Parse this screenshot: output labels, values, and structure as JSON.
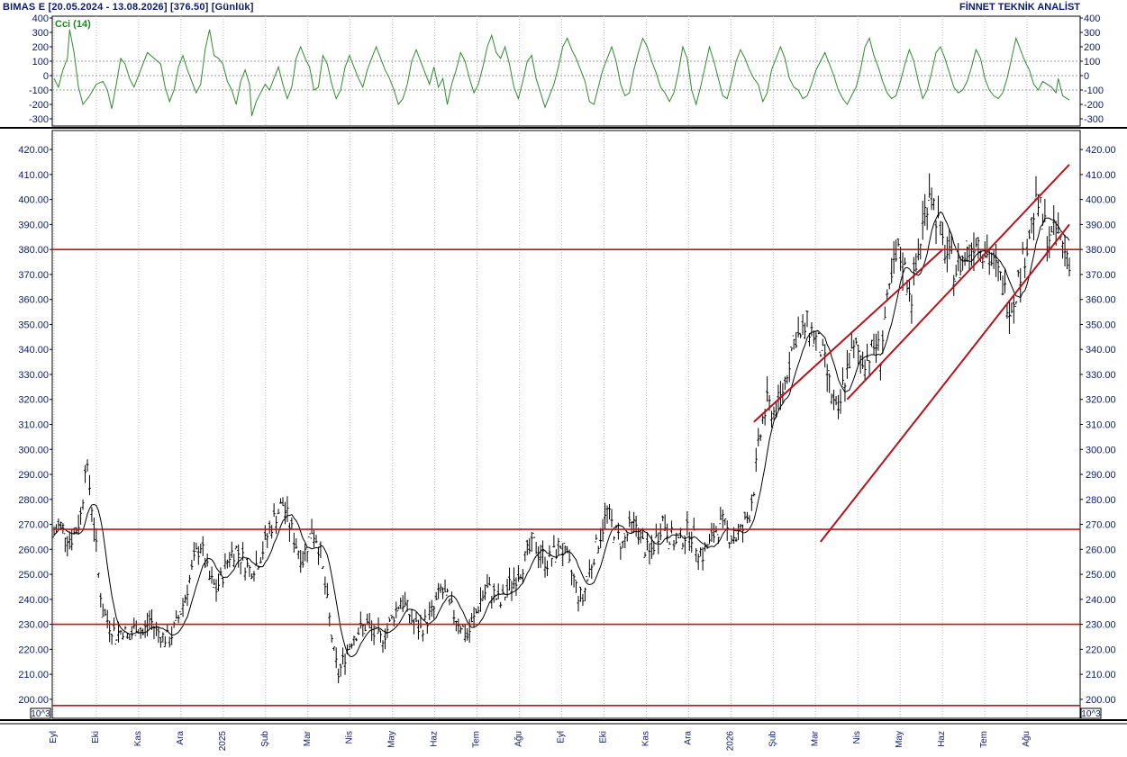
{
  "header": {
    "left": "BIMAS E  [20.05.2024 - 13.08.2026]  [376.50]  [Günlük]",
    "right": "FİNNET TEKNİK ANALİST"
  },
  "indicator": {
    "label": "Cci (14)",
    "yticks": [
      "400",
      "300",
      "200",
      "100",
      "0",
      "-100",
      "-200",
      "-300"
    ],
    "color": "#2e8b2e"
  },
  "scale_marker": "10^3",
  "chart_data": {
    "type": "bar",
    "subtype": "ohlc",
    "y_ticks": [
      "420.00",
      "410.00",
      "400.00",
      "390.00",
      "380.00",
      "370.00",
      "360.00",
      "350.00",
      "340.00",
      "330.00",
      "320.00",
      "310.00",
      "300.00",
      "290.00",
      "280.00",
      "270.00",
      "260.00",
      "250.00",
      "240.00",
      "230.00",
      "220.00",
      "210.00",
      "200.00"
    ],
    "ylim": [
      196,
      424
    ],
    "x_labels": [
      "Eyl",
      "Eki",
      "Kas",
      "Ara",
      "2025",
      "Şub",
      "Mar",
      "Nis",
      "May",
      "Haz",
      "Tem",
      "Ağu",
      "Eyl",
      "Eki",
      "Kas",
      "Ara",
      "2026",
      "Şub",
      "Mar",
      "Nis",
      "May",
      "Haz",
      "Tem",
      "Ağu"
    ],
    "grid": true,
    "close_series": [
      [
        0,
        266
      ],
      [
        5,
        270
      ],
      [
        10,
        267
      ],
      [
        15,
        264
      ],
      [
        20,
        268
      ],
      [
        25,
        275
      ],
      [
        28,
        295
      ],
      [
        32,
        285
      ],
      [
        36,
        270
      ],
      [
        40,
        250
      ],
      [
        44,
        235
      ],
      [
        50,
        230
      ],
      [
        56,
        226
      ],
      [
        62,
        228
      ],
      [
        68,
        224
      ],
      [
        74,
        230
      ],
      [
        80,
        226
      ],
      [
        86,
        232
      ],
      [
        92,
        228
      ],
      [
        98,
        225
      ],
      [
        104,
        224
      ],
      [
        110,
        230
      ],
      [
        116,
        238
      ],
      [
        122,
        248
      ],
      [
        128,
        258
      ],
      [
        132,
        262
      ],
      [
        136,
        255
      ],
      [
        140,
        248
      ],
      [
        146,
        244
      ],
      [
        152,
        250
      ],
      [
        158,
        258
      ],
      [
        164,
        260
      ],
      [
        170,
        256
      ],
      [
        176,
        252
      ],
      [
        182,
        254
      ],
      [
        188,
        260
      ],
      [
        194,
        268
      ],
      [
        200,
        274
      ],
      [
        206,
        278
      ],
      [
        212,
        270
      ],
      [
        218,
        262
      ],
      [
        224,
        256
      ],
      [
        228,
        262
      ],
      [
        232,
        268
      ],
      [
        236,
        265
      ],
      [
        240,
        258
      ],
      [
        244,
        245
      ],
      [
        248,
        232
      ],
      [
        252,
        218
      ],
      [
        256,
        210
      ],
      [
        260,
        215
      ],
      [
        264,
        220
      ],
      [
        270,
        226
      ],
      [
        276,
        228
      ],
      [
        282,
        230
      ],
      [
        288,
        226
      ],
      [
        294,
        224
      ],
      [
        300,
        228
      ],
      [
        306,
        234
      ],
      [
        312,
        240
      ],
      [
        318,
        236
      ],
      [
        324,
        230
      ],
      [
        330,
        228
      ],
      [
        336,
        232
      ],
      [
        342,
        236
      ],
      [
        348,
        244
      ],
      [
        354,
        240
      ],
      [
        360,
        234
      ],
      [
        366,
        230
      ],
      [
        372,
        225
      ],
      [
        378,
        232
      ],
      [
        384,
        240
      ],
      [
        390,
        244
      ],
      [
        396,
        242
      ],
      [
        402,
        238
      ],
      [
        408,
        244
      ],
      [
        414,
        248
      ],
      [
        420,
        252
      ],
      [
        426,
        258
      ],
      [
        432,
        262
      ],
      [
        438,
        258
      ],
      [
        444,
        255
      ],
      [
        450,
        258
      ],
      [
        456,
        262
      ],
      [
        462,
        255
      ],
      [
        468,
        248
      ],
      [
        472,
        242
      ],
      [
        476,
        240
      ],
      [
        480,
        248
      ],
      [
        486,
        258
      ],
      [
        492,
        266
      ],
      [
        498,
        275
      ],
      [
        502,
        270
      ],
      [
        506,
        266
      ],
      [
        512,
        262
      ],
      [
        518,
        268
      ],
      [
        524,
        270
      ],
      [
        530,
        262
      ],
      [
        536,
        258
      ],
      [
        542,
        264
      ],
      [
        548,
        272
      ],
      [
        554,
        266
      ],
      [
        560,
        262
      ],
      [
        566,
        265
      ],
      [
        572,
        268
      ],
      [
        578,
        262
      ],
      [
        584,
        258
      ],
      [
        590,
        262
      ],
      [
        596,
        268
      ],
      [
        602,
        270
      ],
      [
        608,
        266
      ],
      [
        614,
        265
      ],
      [
        620,
        268
      ],
      [
        626,
        275
      ],
      [
        630,
        285
      ],
      [
        634,
        300
      ],
      [
        638,
        312
      ],
      [
        642,
        318
      ],
      [
        648,
        315
      ],
      [
        654,
        320
      ],
      [
        660,
        332
      ],
      [
        664,
        340
      ],
      [
        668,
        346
      ],
      [
        672,
        344
      ],
      [
        678,
        350
      ],
      [
        684,
        346
      ],
      [
        690,
        340
      ],
      [
        694,
        334
      ],
      [
        698,
        326
      ],
      [
        702,
        318
      ],
      [
        706,
        312
      ],
      [
        710,
        325
      ],
      [
        716,
        336
      ],
      [
        722,
        340
      ],
      [
        728,
        336
      ],
      [
        734,
        338
      ],
      [
        740,
        342
      ],
      [
        744,
        338
      ],
      [
        748,
        352
      ],
      [
        752,
        362
      ],
      [
        756,
        372
      ],
      [
        760,
        378
      ],
      [
        764,
        375
      ],
      [
        768,
        368
      ],
      [
        772,
        362
      ],
      [
        776,
        372
      ],
      [
        780,
        384
      ],
      [
        784,
        395
      ],
      [
        788,
        405
      ],
      [
        792,
        398
      ],
      [
        796,
        390
      ],
      [
        800,
        382
      ],
      [
        806,
        376
      ],
      [
        812,
        372
      ],
      [
        818,
        376
      ],
      [
        824,
        380
      ],
      [
        830,
        385
      ],
      [
        836,
        382
      ],
      [
        842,
        376
      ],
      [
        848,
        372
      ],
      [
        854,
        366
      ],
      [
        858,
        360
      ],
      [
        862,
        358
      ],
      [
        866,
        364
      ],
      [
        870,
        372
      ],
      [
        876,
        382
      ],
      [
        882,
        395
      ],
      [
        886,
        398
      ],
      [
        890,
        392
      ],
      [
        894,
        386
      ],
      [
        898,
        384
      ],
      [
        902,
        388
      ],
      [
        906,
        384
      ],
      [
        910,
        380
      ],
      [
        914,
        376.5
      ]
    ],
    "moving_average": "20",
    "horizontal_lines": [
      380,
      268,
      230,
      197.5
    ],
    "channel_lines": [
      {
        "from": [
          690,
          263
        ],
        "to": [
          914,
          390
        ]
      },
      {
        "from": [
          714,
          320
        ],
        "to": [
          914,
          414
        ]
      },
      {
        "from": [
          630,
          311
        ],
        "to": [
          800,
          380
        ]
      }
    ],
    "cci": [
      [
        0,
        -20
      ],
      [
        4,
        -80
      ],
      [
        8,
        40
      ],
      [
        12,
        120
      ],
      [
        14,
        320
      ],
      [
        18,
        160
      ],
      [
        22,
        -80
      ],
      [
        26,
        -200
      ],
      [
        32,
        -140
      ],
      [
        38,
        -60
      ],
      [
        44,
        -40
      ],
      [
        48,
        -100
      ],
      [
        52,
        -230
      ],
      [
        56,
        -60
      ],
      [
        60,
        120
      ],
      [
        64,
        80
      ],
      [
        68,
        -20
      ],
      [
        72,
        -80
      ],
      [
        78,
        40
      ],
      [
        84,
        160
      ],
      [
        90,
        120
      ],
      [
        96,
        80
      ],
      [
        100,
        -80
      ],
      [
        104,
        -180
      ],
      [
        108,
        -100
      ],
      [
        112,
        60
      ],
      [
        116,
        140
      ],
      [
        120,
        40
      ],
      [
        124,
        -40
      ],
      [
        128,
        -120
      ],
      [
        132,
        -60
      ],
      [
        136,
        180
      ],
      [
        140,
        320
      ],
      [
        144,
        140
      ],
      [
        148,
        120
      ],
      [
        152,
        80
      ],
      [
        156,
        -40
      ],
      [
        160,
        -100
      ],
      [
        164,
        -200
      ],
      [
        168,
        -40
      ],
      [
        172,
        40
      ],
      [
        176,
        -60
      ],
      [
        178,
        -280
      ],
      [
        182,
        -180
      ],
      [
        186,
        -120
      ],
      [
        190,
        -60
      ],
      [
        194,
        -100
      ],
      [
        198,
        -20
      ],
      [
        202,
        60
      ],
      [
        206,
        -60
      ],
      [
        210,
        -160
      ],
      [
        214,
        -80
      ],
      [
        218,
        120
      ],
      [
        222,
        200
      ],
      [
        226,
        120
      ],
      [
        230,
        60
      ],
      [
        234,
        -100
      ],
      [
        238,
        -80
      ],
      [
        242,
        140
      ],
      [
        246,
        80
      ],
      [
        250,
        -60
      ],
      [
        254,
        -160
      ],
      [
        258,
        -100
      ],
      [
        262,
        60
      ],
      [
        266,
        140
      ],
      [
        270,
        60
      ],
      [
        274,
        -20
      ],
      [
        278,
        -80
      ],
      [
        282,
        40
      ],
      [
        286,
        120
      ],
      [
        290,
        200
      ],
      [
        294,
        120
      ],
      [
        298,
        40
      ],
      [
        302,
        -20
      ],
      [
        306,
        -100
      ],
      [
        310,
        -200
      ],
      [
        314,
        -160
      ],
      [
        318,
        -60
      ],
      [
        322,
        100
      ],
      [
        326,
        180
      ],
      [
        330,
        100
      ],
      [
        334,
        20
      ],
      [
        338,
        -60
      ],
      [
        342,
        60
      ],
      [
        346,
        -80
      ],
      [
        350,
        -20
      ],
      [
        354,
        -200
      ],
      [
        358,
        -60
      ],
      [
        362,
        40
      ],
      [
        366,
        160
      ],
      [
        370,
        100
      ],
      [
        374,
        -20
      ],
      [
        378,
        -120
      ],
      [
        382,
        -60
      ],
      [
        386,
        60
      ],
      [
        390,
        200
      ],
      [
        394,
        280
      ],
      [
        398,
        160
      ],
      [
        402,
        120
      ],
      [
        406,
        200
      ],
      [
        410,
        80
      ],
      [
        414,
        -80
      ],
      [
        418,
        -160
      ],
      [
        422,
        -40
      ],
      [
        426,
        100
      ],
      [
        430,
        140
      ],
      [
        434,
        -20
      ],
      [
        438,
        -120
      ],
      [
        442,
        -220
      ],
      [
        446,
        -140
      ],
      [
        450,
        -60
      ],
      [
        454,
        60
      ],
      [
        458,
        200
      ],
      [
        462,
        260
      ],
      [
        466,
        180
      ],
      [
        470,
        120
      ],
      [
        474,
        40
      ],
      [
        478,
        -40
      ],
      [
        482,
        -180
      ],
      [
        486,
        -200
      ],
      [
        490,
        -80
      ],
      [
        494,
        40
      ],
      [
        498,
        120
      ],
      [
        502,
        200
      ],
      [
        506,
        100
      ],
      [
        510,
        -60
      ],
      [
        514,
        -140
      ],
      [
        518,
        -120
      ],
      [
        522,
        40
      ],
      [
        526,
        160
      ],
      [
        530,
        260
      ],
      [
        534,
        200
      ],
      [
        538,
        100
      ],
      [
        542,
        20
      ],
      [
        546,
        -80
      ],
      [
        550,
        -120
      ],
      [
        554,
        -180
      ],
      [
        558,
        -120
      ],
      [
        562,
        20
      ],
      [
        566,
        200
      ],
      [
        570,
        120
      ],
      [
        574,
        -100
      ],
      [
        578,
        -200
      ],
      [
        582,
        -80
      ],
      [
        586,
        60
      ],
      [
        590,
        200
      ],
      [
        594,
        100
      ],
      [
        598,
        -20
      ],
      [
        602,
        -140
      ],
      [
        606,
        -160
      ],
      [
        610,
        -40
      ],
      [
        614,
        100
      ],
      [
        618,
        180
      ],
      [
        622,
        120
      ],
      [
        626,
        40
      ],
      [
        630,
        -20
      ],
      [
        634,
        -60
      ],
      [
        638,
        -180
      ],
      [
        642,
        -120
      ],
      [
        646,
        40
      ],
      [
        650,
        120
      ],
      [
        654,
        200
      ],
      [
        658,
        120
      ],
      [
        662,
        -20
      ],
      [
        666,
        -80
      ],
      [
        670,
        -100
      ],
      [
        674,
        -160
      ],
      [
        678,
        -140
      ],
      [
        682,
        -60
      ],
      [
        686,
        40
      ],
      [
        690,
        100
      ],
      [
        694,
        160
      ],
      [
        698,
        80
      ],
      [
        702,
        0
      ],
      [
        706,
        -100
      ],
      [
        710,
        -160
      ],
      [
        714,
        -200
      ],
      [
        718,
        -140
      ],
      [
        722,
        -80
      ],
      [
        726,
        40
      ],
      [
        730,
        200
      ],
      [
        734,
        260
      ],
      [
        738,
        140
      ],
      [
        742,
        60
      ],
      [
        746,
        -40
      ],
      [
        750,
        -120
      ],
      [
        754,
        -160
      ],
      [
        758,
        -140
      ],
      [
        762,
        -40
      ],
      [
        766,
        80
      ],
      [
        770,
        180
      ],
      [
        774,
        100
      ],
      [
        778,
        -40
      ],
      [
        782,
        -160
      ],
      [
        786,
        -100
      ],
      [
        790,
        20
      ],
      [
        794,
        160
      ],
      [
        798,
        200
      ],
      [
        802,
        120
      ],
      [
        806,
        20
      ],
      [
        810,
        -80
      ],
      [
        814,
        -120
      ],
      [
        818,
        -100
      ],
      [
        822,
        -40
      ],
      [
        826,
        60
      ],
      [
        830,
        180
      ],
      [
        834,
        120
      ],
      [
        838,
        -20
      ],
      [
        842,
        -100
      ],
      [
        846,
        -140
      ],
      [
        850,
        -160
      ],
      [
        854,
        -120
      ],
      [
        858,
        -20
      ],
      [
        862,
        120
      ],
      [
        866,
        260
      ],
      [
        870,
        180
      ],
      [
        874,
        100
      ],
      [
        878,
        40
      ],
      [
        882,
        -60
      ],
      [
        886,
        -100
      ],
      [
        890,
        -40
      ],
      [
        894,
        -60
      ],
      [
        898,
        -80
      ],
      [
        902,
        -120
      ],
      [
        904,
        -20
      ],
      [
        908,
        -140
      ],
      [
        912,
        -160
      ],
      [
        914,
        -170
      ]
    ]
  }
}
